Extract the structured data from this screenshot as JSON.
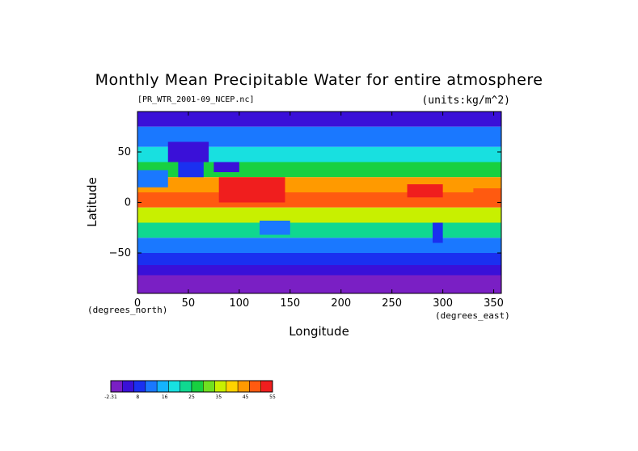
{
  "chart_data": {
    "type": "heatmap",
    "title": "Monthly Mean Precipitable Water for entire atmosphere",
    "source_label": "[PR_WTR_2001-09_NCEP.nc]",
    "units_label": "(units:kg/m^2)",
    "xlabel": "Longitude",
    "ylabel": "Latitude",
    "x_unit_label": "(degrees_east)",
    "y_unit_label": "(degrees_north)",
    "xlim": [
      0,
      357.5
    ],
    "ylim": [
      -90,
      90
    ],
    "x_ticks": [
      0,
      50,
      100,
      150,
      200,
      250,
      300,
      350
    ],
    "y_ticks": [
      50,
      0,
      -50
    ],
    "y_tick_labels": [
      "50",
      "0",
      "−50"
    ],
    "colorbar": {
      "tick_labels": [
        "-2.31",
        "8",
        "16",
        "25",
        "35",
        "45",
        "55"
      ],
      "colors": [
        "#7a1fc4",
        "#3a10d8",
        "#1a30f0",
        "#1a78ff",
        "#14b4ff",
        "#18e0e0",
        "#10d890",
        "#18d040",
        "#70e020",
        "#c8f000",
        "#ffd200",
        "#ff9a00",
        "#ff5a10",
        "#f01e1e"
      ]
    },
    "zonal_bands": [
      {
        "lat_min": 75,
        "lat_max": 90,
        "value": 6
      },
      {
        "lat_min": 55,
        "lat_max": 75,
        "value": 14
      },
      {
        "lat_min": 40,
        "lat_max": 55,
        "value": 22
      },
      {
        "lat_min": 25,
        "lat_max": 40,
        "value": 32
      },
      {
        "lat_min": 10,
        "lat_max": 25,
        "value": 45
      },
      {
        "lat_min": -5,
        "lat_max": 10,
        "value": 50
      },
      {
        "lat_min": -20,
        "lat_max": -5,
        "value": 38
      },
      {
        "lat_min": -35,
        "lat_max": -20,
        "value": 26
      },
      {
        "lat_min": -50,
        "lat_max": -35,
        "value": 16
      },
      {
        "lat_min": -62,
        "lat_max": -50,
        "value": 9
      },
      {
        "lat_min": -72,
        "lat_max": -62,
        "value": 5
      },
      {
        "lat_min": -90,
        "lat_max": -72,
        "value": 0
      }
    ],
    "regions": [
      {
        "lon_min": 80,
        "lon_max": 145,
        "lat_min": 0,
        "lat_max": 25,
        "value": 55
      },
      {
        "lon_min": 265,
        "lon_max": 300,
        "lat_min": 5,
        "lat_max": 18,
        "value": 53
      },
      {
        "lon_min": 330,
        "lon_max": 357.5,
        "lat_min": 2,
        "lat_max": 14,
        "value": 52
      },
      {
        "lon_min": 0,
        "lon_max": 30,
        "lat_min": 15,
        "lat_max": 32,
        "value": 14
      },
      {
        "lon_min": 40,
        "lon_max": 65,
        "lat_min": 25,
        "lat_max": 45,
        "value": 12
      },
      {
        "lon_min": 75,
        "lon_max": 100,
        "lat_min": 30,
        "lat_max": 40,
        "value": 6
      },
      {
        "lon_min": 120,
        "lon_max": 150,
        "lat_min": -32,
        "lat_max": -18,
        "value": 16
      },
      {
        "lon_min": 290,
        "lon_max": 300,
        "lat_min": -40,
        "lat_max": -20,
        "value": 9
      },
      {
        "lon_min": 30,
        "lon_max": 70,
        "lat_min": 40,
        "lat_max": 60,
        "value": 8
      }
    ]
  }
}
